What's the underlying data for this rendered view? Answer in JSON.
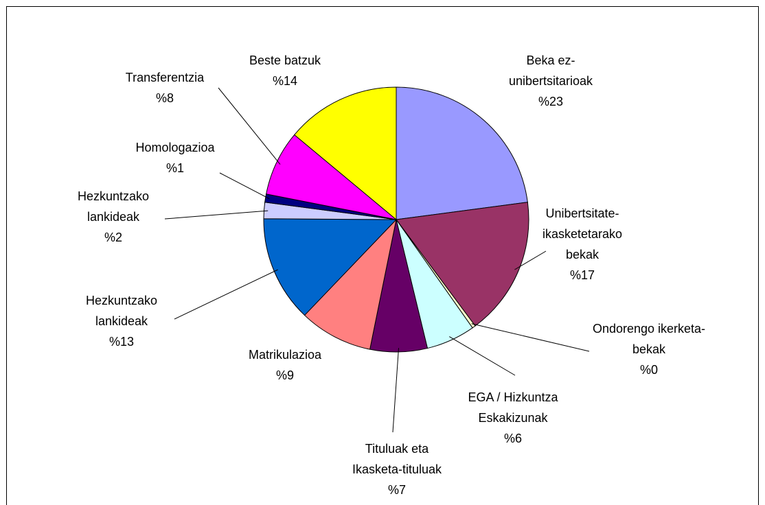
{
  "chart_data": {
    "type": "pie",
    "categories": [
      "Beka ez-unibertsitarioak",
      "Unibertsitate-ikasketetarako bekak",
      "Ondorengo ikerketa-bekak",
      "EGA / Hizkuntza Eskakizunak",
      "Tituluak eta Ikasketa-tituluak",
      "Matrikulazioa",
      "Hezkuntzako lankideak",
      "Hezkuntzako lankideak",
      "Homologazioa",
      "Transferentzia",
      "Beste batzuk"
    ],
    "values": [
      23,
      17,
      0.4,
      6,
      7,
      9,
      13,
      2,
      1,
      8,
      14
    ],
    "value_labels": [
      "%23",
      "%17",
      "%0",
      "%6",
      "%7",
      "%9",
      "%13",
      "%2",
      "%1",
      "%8",
      "%14"
    ],
    "colors": [
      "#9999ff",
      "#993366",
      "#ffffcc",
      "#ccffff",
      "#660066",
      "#ff8080",
      "#0066cc",
      "#ccccff",
      "#000080",
      "#ff00ff",
      "#ffff00"
    ]
  }
}
